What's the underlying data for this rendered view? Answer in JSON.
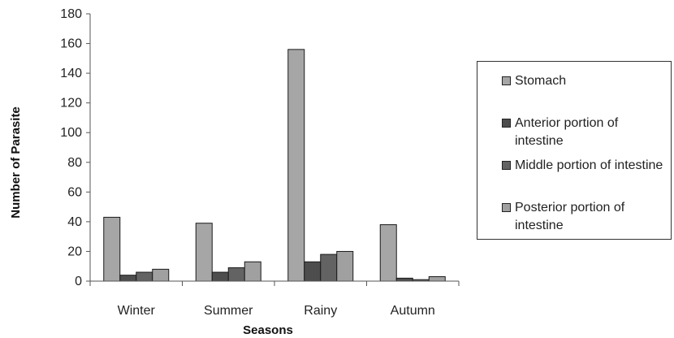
{
  "chart_data": {
    "type": "bar",
    "xlabel": "Seasons",
    "ylabel": "Number of Parasite",
    "ylim": [
      0,
      180
    ],
    "yticks": [
      "0",
      "20",
      "40",
      "60",
      "80",
      "100",
      "120",
      "140",
      "160",
      "180"
    ],
    "categories": [
      "Winter",
      "Summer",
      "Rainy",
      "Autumn"
    ],
    "grid": false,
    "legend_position": "right",
    "series": [
      {
        "name": "Stomach",
        "color": "#a6a6a6",
        "values": [
          43,
          39,
          156,
          38
        ]
      },
      {
        "name": "Anterior portion of intestine",
        "color": "#4d4d4d",
        "values": [
          4,
          6,
          13,
          2
        ]
      },
      {
        "name": "Middle portion of intestine",
        "color": "#636363",
        "values": [
          6,
          9,
          18,
          1
        ]
      },
      {
        "name": "Posterior portion of intestine",
        "color": "#a0a0a0",
        "values": [
          8,
          13,
          20,
          3
        ]
      }
    ]
  }
}
